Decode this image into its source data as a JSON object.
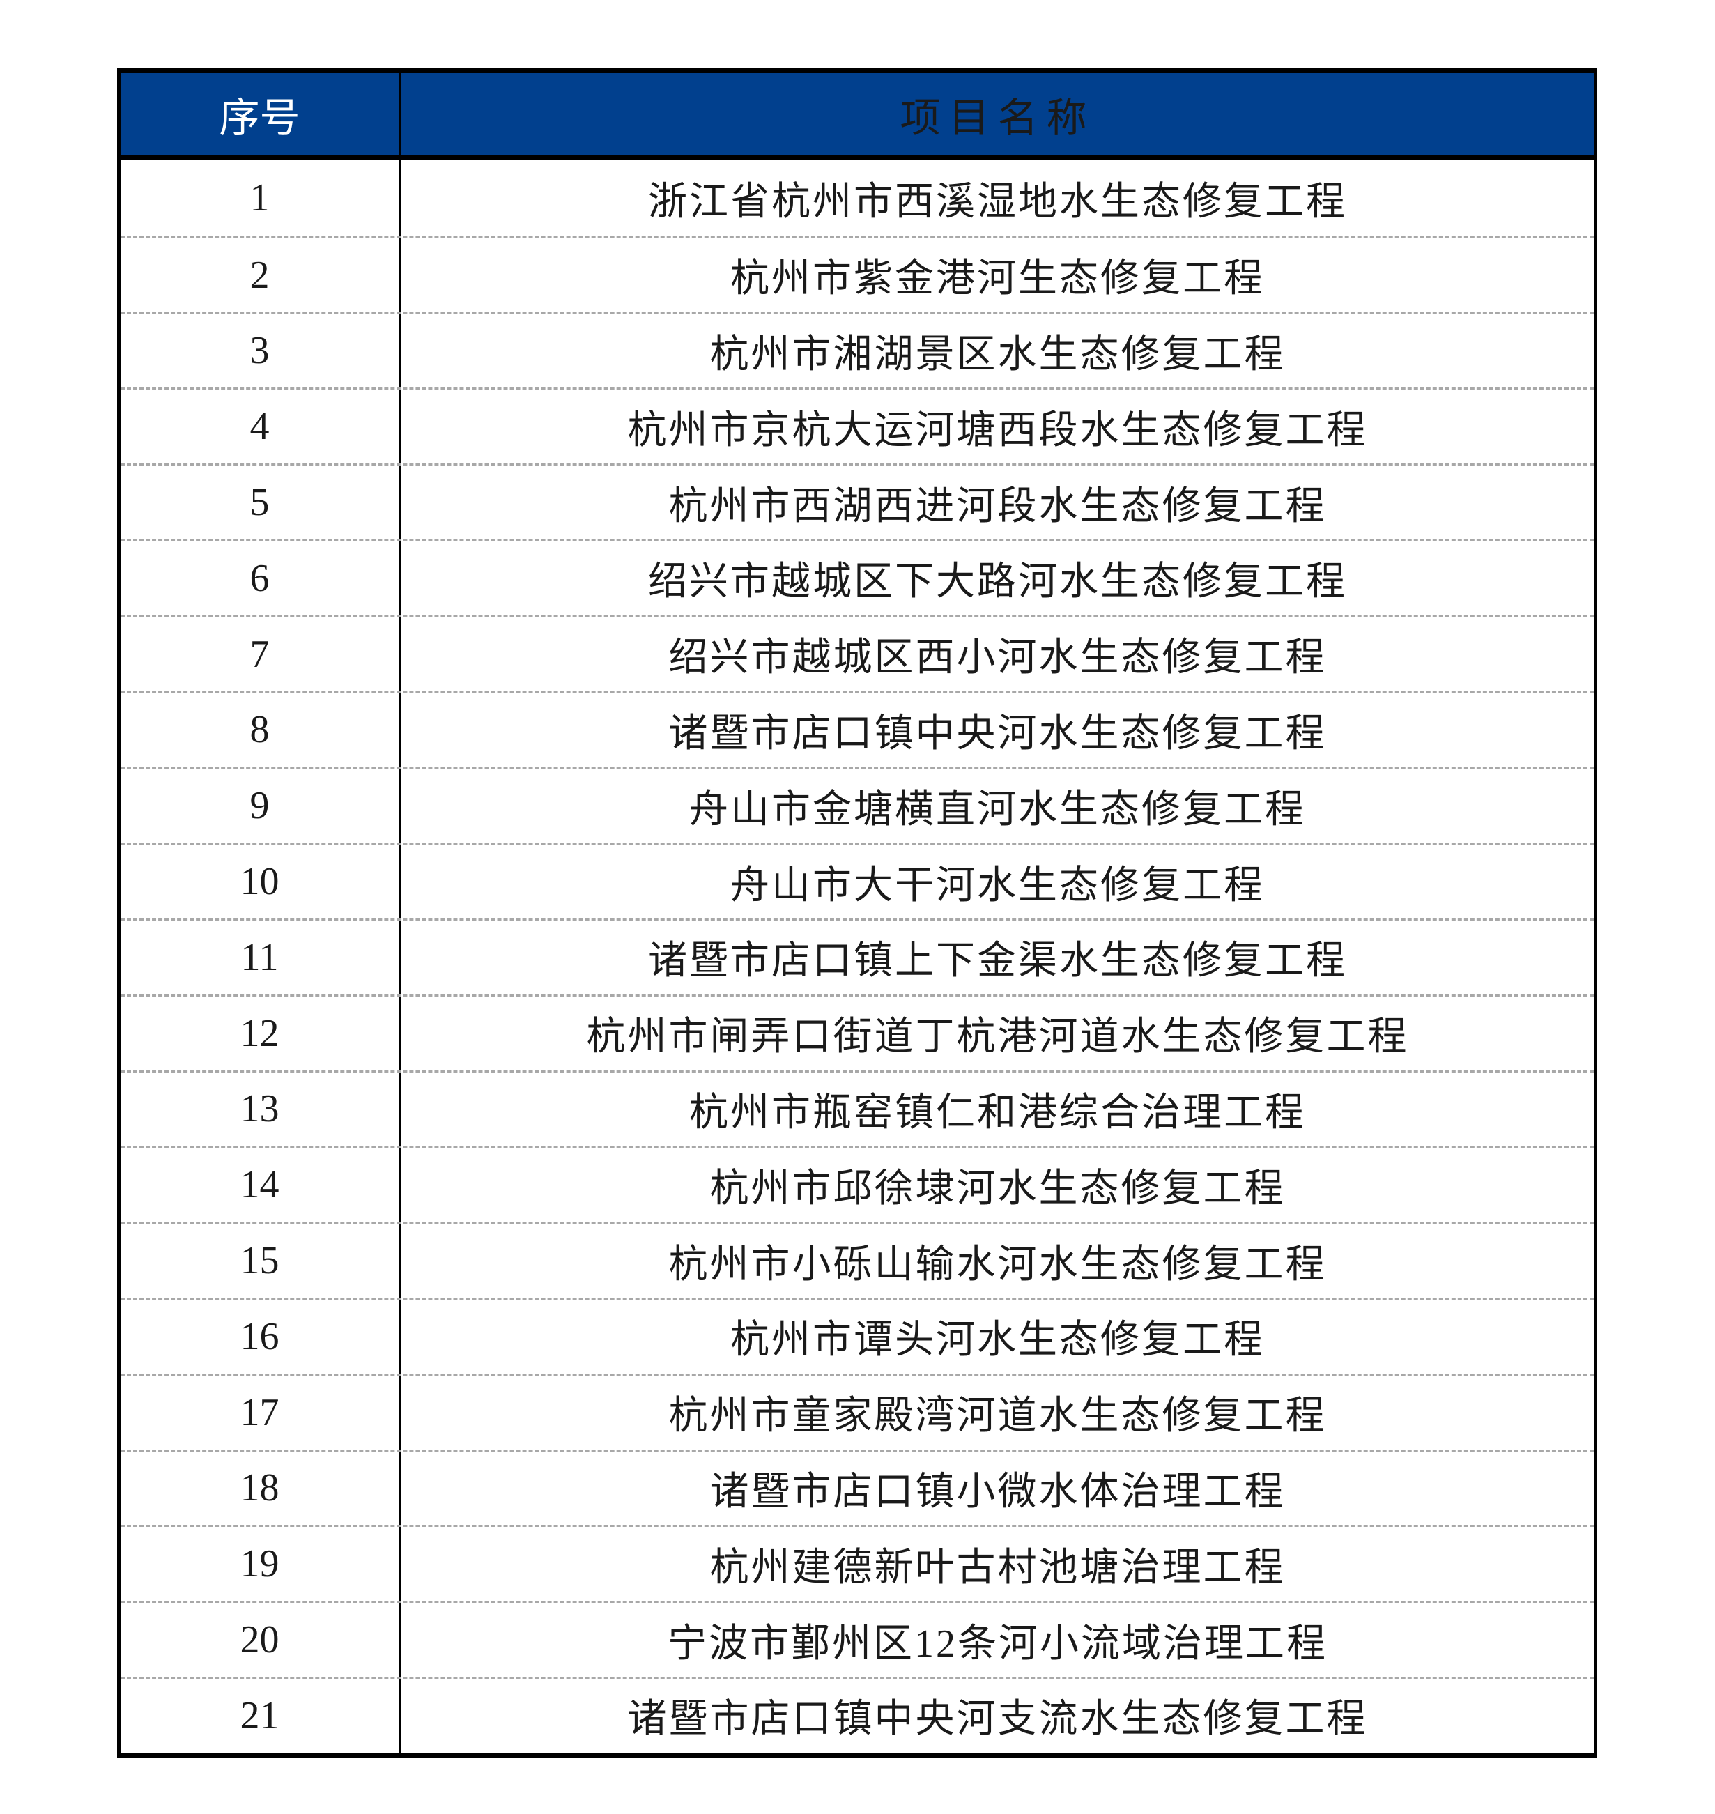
{
  "colors": {
    "header_bg": "#01408E",
    "header_text": "#FFFFFF",
    "border": "#000000",
    "row_divider": "#A8A8A8",
    "body_text": "#1A1A1A",
    "page_bg": "#FFFFFF"
  },
  "table": {
    "headers": {
      "no": "序号",
      "name": "项目名称"
    },
    "rows": [
      {
        "no": "1",
        "name": "浙江省杭州市西溪湿地水生态修复工程"
      },
      {
        "no": "2",
        "name": "杭州市紫金港河生态修复工程"
      },
      {
        "no": "3",
        "name": "杭州市湘湖景区水生态修复工程"
      },
      {
        "no": "4",
        "name": "杭州市京杭大运河塘西段水生态修复工程"
      },
      {
        "no": "5",
        "name": "杭州市西湖西进河段水生态修复工程"
      },
      {
        "no": "6",
        "name": "绍兴市越城区下大路河水生态修复工程"
      },
      {
        "no": "7",
        "name": "绍兴市越城区西小河水生态修复工程"
      },
      {
        "no": "8",
        "name": "诸暨市店口镇中央河水生态修复工程"
      },
      {
        "no": "9",
        "name": "舟山市金塘横直河水生态修复工程"
      },
      {
        "no": "10",
        "name": "舟山市大干河水生态修复工程"
      },
      {
        "no": "11",
        "name": "诸暨市店口镇上下金渠水生态修复工程"
      },
      {
        "no": "12",
        "name": "杭州市闸弄口街道丁杭港河道水生态修复工程"
      },
      {
        "no": "13",
        "name": "杭州市瓶窑镇仁和港综合治理工程"
      },
      {
        "no": "14",
        "name": "杭州市邱徐埭河水生态修复工程"
      },
      {
        "no": "15",
        "name": "杭州市小砾山输水河水生态修复工程"
      },
      {
        "no": "16",
        "name": "杭州市谭头河水生态修复工程"
      },
      {
        "no": "17",
        "name": "杭州市童家殿湾河道水生态修复工程"
      },
      {
        "no": "18",
        "name": "诸暨市店口镇小微水体治理工程"
      },
      {
        "no": "19",
        "name": "杭州建德新叶古村池塘治理工程"
      },
      {
        "no": "20",
        "name": "宁波市鄞州区12条河小流域治理工程"
      },
      {
        "no": "21",
        "name": "诸暨市店口镇中央河支流水生态修复工程"
      }
    ]
  }
}
